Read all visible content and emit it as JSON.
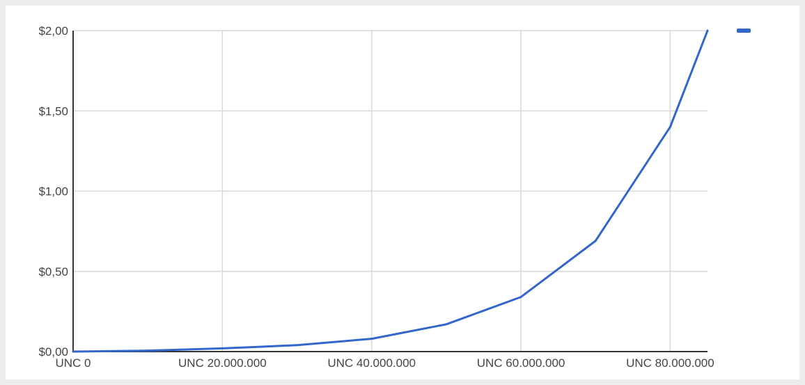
{
  "colors": {
    "series": "#3366cc",
    "grid": "#d9d9d9",
    "axis": "#333333",
    "tick_text": "#444444",
    "background": "#ffffff"
  },
  "chart_data": {
    "type": "line",
    "title": "",
    "xlabel": "",
    "ylabel": "",
    "xlim": [
      0,
      85000000
    ],
    "ylim": [
      0,
      2
    ],
    "grid": true,
    "legend": "top-right",
    "x_ticks": [
      {
        "value": 0,
        "label": "UNC 0"
      },
      {
        "value": 20000000,
        "label": "UNC 20.000.000"
      },
      {
        "value": 40000000,
        "label": "UNC 40.000.000"
      },
      {
        "value": 60000000,
        "label": "UNC 60.000.000"
      },
      {
        "value": 80000000,
        "label": "UNC 80.000.000"
      }
    ],
    "y_ticks": [
      {
        "value": 0,
        "label": "$0,00"
      },
      {
        "value": 0.5,
        "label": "$0,50"
      },
      {
        "value": 1,
        "label": "$1,00"
      },
      {
        "value": 1.5,
        "label": "$1,50"
      },
      {
        "value": 2,
        "label": "$2,00"
      }
    ],
    "series": [
      {
        "x": [
          0,
          10000000,
          20000000,
          30000000,
          40000000,
          50000000,
          60000000,
          70000000,
          80000000,
          85000000
        ],
        "y": [
          0.0,
          0.006,
          0.02,
          0.04,
          0.08,
          0.17,
          0.34,
          0.69,
          1.4,
          2.0
        ]
      }
    ]
  }
}
